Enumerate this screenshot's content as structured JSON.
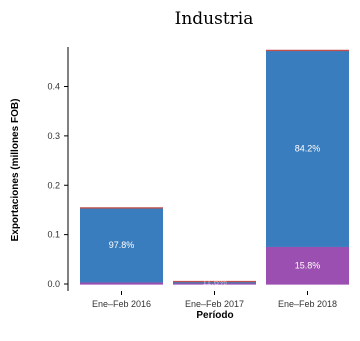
{
  "chart_data": {
    "type": "bar",
    "stacked": true,
    "title": "Industria",
    "xlabel": "Período",
    "ylabel": "Exportaciones (millones FOB)",
    "ylim": [
      0,
      0.48
    ],
    "yticks": [
      0.0,
      0.1,
      0.2,
      0.3,
      0.4
    ],
    "ytick_labels": [
      "0.0",
      "0.1",
      "0.2",
      "0.3",
      "0.4"
    ],
    "categories": [
      "Ene–Feb 2016",
      "Ene–Feb 2017",
      "Ene–Feb 2018"
    ],
    "series": [
      {
        "color": "#9b4fb0",
        "values": [
          0.003,
          0.0005,
          0.075
        ],
        "labels": [
          "",
          "",
          "15.8%"
        ]
      },
      {
        "color": "#3a7dbf",
        "values": [
          0.151,
          0.0045,
          0.398
        ],
        "labels": [
          "97.8%",
          "",
          "84.2%"
        ]
      }
    ],
    "top_edge_color": "#c0504d",
    "hidden_label": "11.6%",
    "grid": false,
    "legend": "none"
  }
}
